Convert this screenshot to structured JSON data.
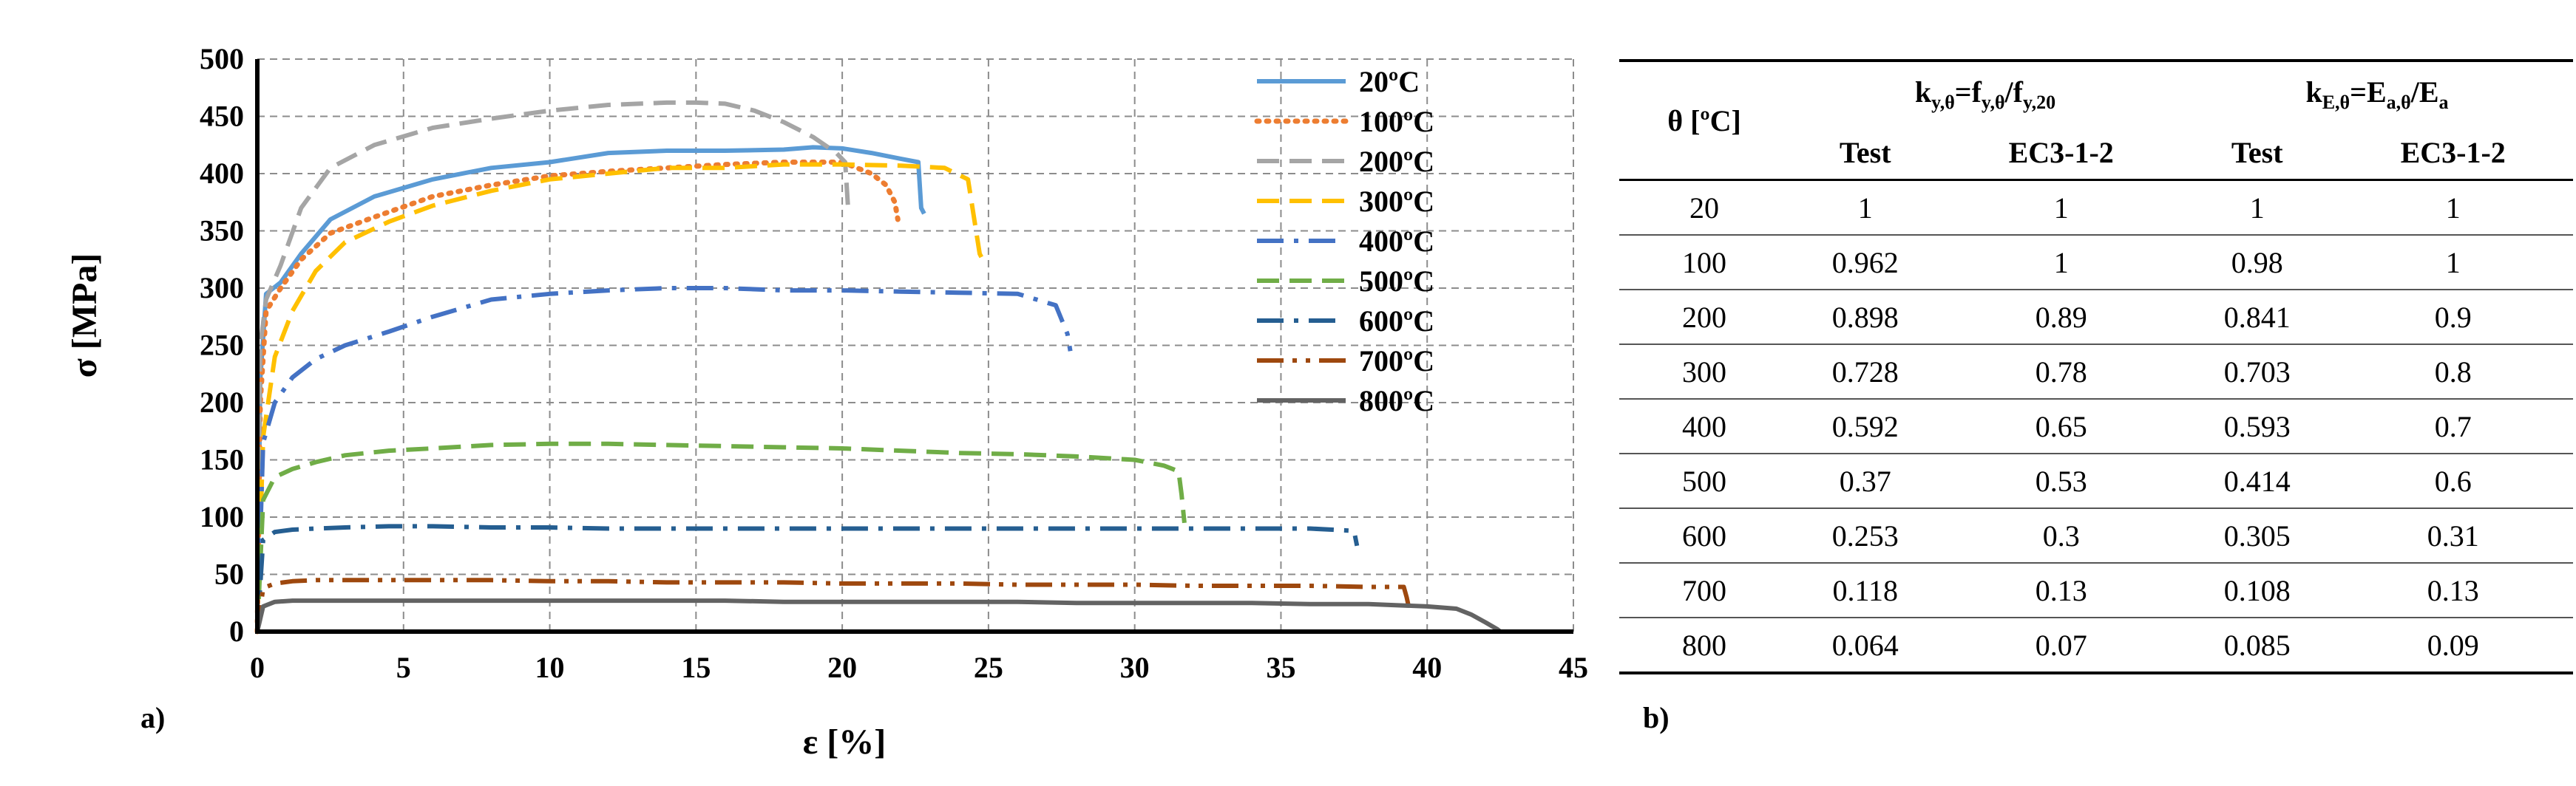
{
  "chart_data": {
    "type": "line",
    "title": "",
    "xlabel": "ε [%]",
    "ylabel": "σ [MPa]",
    "xlim": [
      0,
      45
    ],
    "ylim": [
      0,
      500
    ],
    "xticks": [
      "0",
      "5",
      "10",
      "15",
      "20",
      "25",
      "30",
      "35",
      "40",
      "45"
    ],
    "yticks": [
      "0",
      "50",
      "100",
      "150",
      "200",
      "250",
      "300",
      "350",
      "400",
      "450",
      "500"
    ],
    "grid": true,
    "legend_position": "top-right",
    "series": [
      {
        "name": "20ºC",
        "color": "#5b9bd5",
        "dash": "solid",
        "x": [
          0,
          0.1,
          0.3,
          0.8,
          1.5,
          2.5,
          4,
          6,
          8,
          10,
          12,
          14,
          16,
          18,
          19,
          20,
          21,
          22,
          22.6,
          22.7,
          22.8
        ],
        "y": [
          0,
          220,
          295,
          305,
          330,
          360,
          380,
          395,
          405,
          410,
          418,
          420,
          420,
          421,
          423,
          422,
          418,
          413,
          410,
          370,
          365
        ]
      },
      {
        "name": "100ºC",
        "color": "#ed7d31",
        "dash": "dot",
        "x": [
          0,
          0.1,
          0.3,
          0.8,
          1.5,
          2.5,
          4,
          6,
          8,
          10,
          12,
          14,
          16,
          18,
          20,
          21,
          21.5,
          21.8,
          21.9
        ],
        "y": [
          0,
          200,
          280,
          300,
          325,
          348,
          362,
          380,
          390,
          398,
          402,
          405,
          408,
          410,
          410,
          400,
          390,
          375,
          360
        ]
      },
      {
        "name": "200ºC",
        "color": "#a5a5a5",
        "dash": "dash",
        "x": [
          0,
          0.1,
          0.3,
          0.8,
          1.5,
          2.5,
          4,
          6,
          8,
          10,
          12,
          14,
          15,
          16,
          17,
          18,
          19,
          19.8,
          20.1,
          20.2
        ],
        "y": [
          0,
          250,
          290,
          320,
          370,
          405,
          425,
          440,
          448,
          455,
          460,
          462,
          462,
          461,
          455,
          445,
          432,
          418,
          410,
          370
        ]
      },
      {
        "name": "300ºC",
        "color": "#ffc000",
        "dash": "dash",
        "x": [
          0,
          0.2,
          0.6,
          1.2,
          2,
          3,
          4.5,
          6,
          8,
          10,
          12,
          14,
          16,
          18,
          20,
          22,
          23.5,
          24.3,
          24.7,
          24.8
        ],
        "y": [
          0,
          170,
          240,
          280,
          315,
          340,
          358,
          372,
          385,
          395,
          400,
          405,
          405,
          408,
          408,
          407,
          405,
          395,
          330,
          325
        ]
      },
      {
        "name": "400ºC",
        "color": "#4472c4",
        "dash": "dashdot",
        "x": [
          0,
          0.2,
          0.6,
          1.2,
          2,
          3,
          4.5,
          6,
          8,
          10,
          12,
          14,
          16,
          18,
          20,
          22,
          24,
          26,
          27.3,
          27.7,
          27.8
        ],
        "y": [
          0,
          165,
          200,
          222,
          238,
          250,
          262,
          275,
          290,
          295,
          298,
          300,
          300,
          298,
          298,
          297,
          296,
          295,
          285,
          260,
          245
        ]
      },
      {
        "name": "500ºC",
        "color": "#70ad47",
        "dash": "dash",
        "x": [
          0,
          0.2,
          0.6,
          1.2,
          2,
          3,
          4.5,
          6,
          8,
          10,
          12,
          14,
          16,
          18,
          20,
          22,
          24,
          26,
          28,
          30,
          31,
          31.5,
          31.6,
          31.7
        ],
        "y": [
          0,
          115,
          135,
          142,
          148,
          154,
          158,
          160,
          163,
          164,
          164,
          163,
          162,
          161,
          160,
          158,
          156,
          155,
          153,
          150,
          145,
          140,
          120,
          95
        ]
      },
      {
        "name": "600ºC",
        "color": "#255e91",
        "dash": "dashdot",
        "x": [
          0,
          0.2,
          0.6,
          1.2,
          2,
          3,
          4.5,
          6,
          8,
          10,
          12,
          14,
          16,
          18,
          20,
          22,
          24,
          26,
          28,
          30,
          32,
          34,
          36,
          37.5,
          37.6
        ],
        "y": [
          0,
          80,
          87,
          89,
          90,
          91,
          92,
          92,
          91,
          91,
          90,
          90,
          90,
          90,
          90,
          90,
          90,
          90,
          90,
          90,
          90,
          90,
          90,
          88,
          75
        ]
      },
      {
        "name": "700ºC",
        "color": "#9e480e",
        "dash": "dashdotdot",
        "x": [
          0,
          0.2,
          0.6,
          1.2,
          2,
          3,
          4.5,
          6,
          8,
          10,
          12,
          14,
          16,
          18,
          20,
          22,
          24,
          26,
          28,
          30,
          32,
          34,
          36,
          38,
          39.2,
          39.3,
          39.4
        ],
        "y": [
          0,
          38,
          42,
          44,
          45,
          45,
          45,
          45,
          45,
          44,
          44,
          43,
          43,
          43,
          42,
          42,
          42,
          41,
          41,
          41,
          40,
          40,
          40,
          39,
          39,
          30,
          18
        ]
      },
      {
        "name": "800ºC",
        "color": "#636363",
        "dash": "solid",
        "x": [
          0,
          0.2,
          0.6,
          1.2,
          2,
          4,
          6,
          8,
          10,
          12,
          14,
          16,
          18,
          20,
          22,
          24,
          26,
          28,
          30,
          32,
          34,
          36,
          38,
          40,
          41,
          41.5,
          42,
          42.4,
          42.5
        ],
        "y": [
          0,
          22,
          26,
          27,
          27,
          27,
          27,
          27,
          27,
          27,
          27,
          27,
          26,
          26,
          26,
          26,
          26,
          25,
          25,
          25,
          25,
          24,
          24,
          22,
          20,
          15,
          8,
          2,
          0
        ]
      }
    ]
  },
  "labels": {
    "panel_a": "a)",
    "panel_b": "b)"
  },
  "table": {
    "theta_header": "θ [ºC]",
    "ky": {
      "k_main": "k",
      "k_sub": "y,θ",
      "eq": "=",
      "f1": "f",
      "f1_sub": "y,θ",
      "slash": "/",
      "f2": "f",
      "f2_sub": "y,20"
    },
    "kE": {
      "k_main": "k",
      "k_sub": "E,θ",
      "eq": "=",
      "e1": "E",
      "e1_sub": "a,θ",
      "slash": "/",
      "e2": "E",
      "e2_sub": "a"
    },
    "sub_headers": [
      "Test",
      "EC3-1-2",
      "Test",
      "EC3-1-2"
    ],
    "rows": [
      [
        "20",
        "1",
        "1",
        "1",
        "1"
      ],
      [
        "100",
        "0.962",
        "1",
        "0.98",
        "1"
      ],
      [
        "200",
        "0.898",
        "0.89",
        "0.841",
        "0.9"
      ],
      [
        "300",
        "0.728",
        "0.78",
        "0.703",
        "0.8"
      ],
      [
        "400",
        "0.592",
        "0.65",
        "0.593",
        "0.7"
      ],
      [
        "500",
        "0.37",
        "0.53",
        "0.414",
        "0.6"
      ],
      [
        "600",
        "0.253",
        "0.3",
        "0.305",
        "0.31"
      ],
      [
        "700",
        "0.118",
        "0.13",
        "0.108",
        "0.13"
      ],
      [
        "800",
        "0.064",
        "0.07",
        "0.085",
        "0.09"
      ]
    ]
  }
}
